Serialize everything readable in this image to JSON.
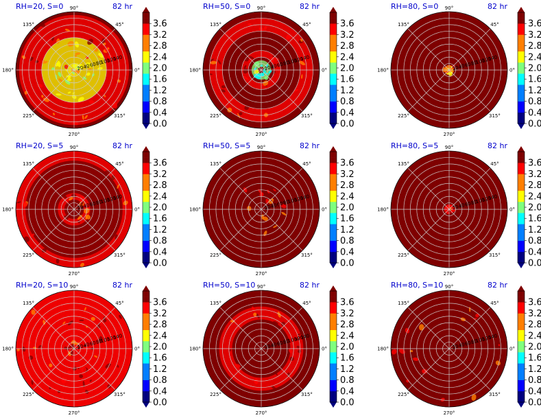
{
  "chart_data": {
    "type": "heatmap",
    "layout": {
      "rows": 3,
      "cols": 3
    },
    "colormap": [
      "#00007f",
      "#0000ff",
      "#007fff",
      "#00ffff",
      "#7fff7f",
      "#ffff00",
      "#ff7f00",
      "#ff0000",
      "#7f0000"
    ],
    "theta_tick_labels": [
      "0°",
      "45°",
      "90°",
      "135°",
      "180°",
      "225°",
      "270°",
      "315°"
    ],
    "r_tick_labels": [
      "20",
      "40",
      "60",
      "80",
      "100",
      "120",
      "140"
    ],
    "r_grid_values": [
      20,
      40,
      60,
      80,
      100,
      120,
      140,
      160,
      180
    ],
    "r_max": 180,
    "r_label_angle": 15,
    "colorbar": {
      "ticks": [
        "0.0",
        "0.4",
        "0.8",
        "1.2",
        "1.6",
        "2.0",
        "2.4",
        "2.8",
        "3.2",
        "3.6"
      ],
      "vmin": 0.0,
      "vmax": 4.0,
      "extend": "both"
    },
    "panels": [
      {
        "title": "RH=20, S=0",
        "time": "82 hr",
        "background": "#7f0000",
        "fill_radius": 180,
        "field": [
          {
            "r": [
              20,
              100
            ],
            "value": 2.6
          },
          {
            "r": [
              100,
              170
            ],
            "value": 3.3
          },
          {
            "r": [
              0,
              20
            ],
            "value": 2.4
          }
        ]
      },
      {
        "title": "RH=50, S=0",
        "time": "82 hr",
        "background": "#7f0000",
        "fill_radius": 180,
        "field": [
          {
            "r": [
              10,
              30
            ],
            "value": 1.9
          },
          {
            "r": [
              40,
              60
            ],
            "value": 3.4
          },
          {
            "r": [
              120,
              160
            ],
            "value": 3.3
          }
        ]
      },
      {
        "title": "RH=80, S=0",
        "time": "82 hr",
        "background": "#7f0000",
        "fill_radius": 180,
        "field": [
          {
            "r": [
              0,
              15
            ],
            "value": 2.8
          }
        ]
      },
      {
        "title": "RH=20, S=5",
        "time": "82 hr",
        "background": "#8a0000",
        "fill_radius": 180,
        "field": [
          {
            "r": [
              30,
              50
            ],
            "value": 3.5
          },
          {
            "r": [
              150,
              180
            ],
            "value": 3.4
          }
        ]
      },
      {
        "title": "RH=50, S=5",
        "time": "82 hr",
        "background": "#7f0000",
        "fill_radius": 180,
        "field": [
          {
            "r": [
              20,
              80
            ],
            "value": 3.6
          }
        ]
      },
      {
        "title": "RH=80, S=5",
        "time": "82 hr",
        "background": "#7f0000",
        "fill_radius": 180,
        "field": [
          {
            "r": [
              0,
              15
            ],
            "value": 3.5
          }
        ]
      },
      {
        "title": "RH=20, S=10",
        "time": "82 hr",
        "background": "#8f0000",
        "fill_radius": 180,
        "field": [
          {
            "r": [
              0,
              180
            ],
            "value": 3.4
          }
        ]
      },
      {
        "title": "RH=50, S=10",
        "time": "82 hr",
        "background": "#7f0000",
        "fill_radius": 180,
        "field": [
          {
            "r": [
              90,
              130
            ],
            "value": 3.5
          }
        ]
      },
      {
        "title": "RH=80, S=10",
        "time": "82 hr",
        "background": "#7f0000",
        "fill_radius": 180,
        "field": [
          {
            "r": [
              100,
              170
            ],
            "value": 3.6
          }
        ]
      }
    ]
  }
}
